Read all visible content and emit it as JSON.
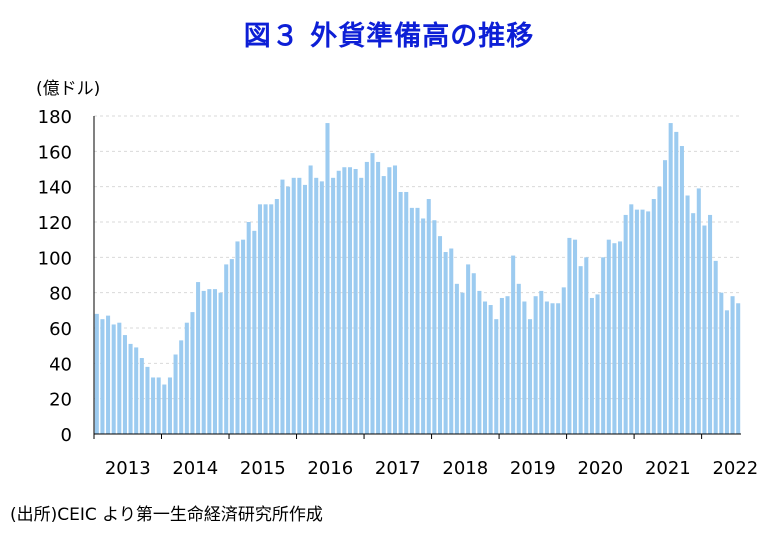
{
  "chart_data": {
    "type": "bar",
    "title": "図３ 外貨準備高の推移",
    "ylabel": "(億ドル)",
    "xlabel": "",
    "ylim": [
      0,
      180
    ],
    "yticks": [
      0,
      20,
      40,
      60,
      80,
      100,
      120,
      140,
      160,
      180
    ],
    "grid": true,
    "bar_color": "#9ccbf0",
    "years": [
      "2013",
      "2014",
      "2015",
      "2016",
      "2017",
      "2018",
      "2019",
      "2020",
      "2021",
      "2022"
    ],
    "values": [
      68,
      65,
      67,
      62,
      63,
      56,
      51,
      49,
      43,
      38,
      32,
      32,
      28,
      32,
      45,
      53,
      63,
      69,
      86,
      81,
      82,
      82,
      80,
      96,
      99,
      109,
      110,
      120,
      115,
      130,
      130,
      130,
      133,
      144,
      140,
      145,
      145,
      141,
      152,
      145,
      143,
      176,
      145,
      149,
      151,
      151,
      150,
      145,
      154,
      159,
      154,
      146,
      151,
      152,
      137,
      137,
      128,
      128,
      122,
      133,
      121,
      112,
      103,
      105,
      85,
      80,
      96,
      91,
      81,
      75,
      73,
      65,
      77,
      78,
      101,
      85,
      75,
      65,
      78,
      81,
      75,
      74,
      74,
      83,
      111,
      110,
      95,
      100,
      77,
      79,
      100,
      110,
      108,
      109,
      124,
      130,
      127,
      127,
      126,
      133,
      140,
      155,
      176,
      171,
      163,
      135,
      125,
      139,
      118,
      124,
      98,
      80,
      70,
      78,
      74
    ]
  },
  "source_note": "(出所)CEIC より第一生命経済研究所作成"
}
